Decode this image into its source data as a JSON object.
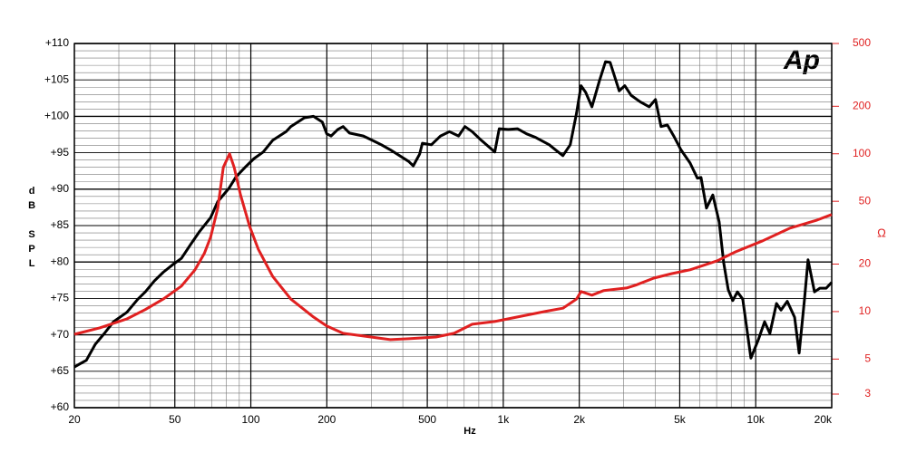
{
  "chart_data": {
    "type": "line",
    "y_label": "dB SPL",
    "x_label": "Hz",
    "y2_label": "Ω",
    "logo": "Ap",
    "x_log": true,
    "y2_log": true,
    "grid": true,
    "xlim": [
      20,
      20000
    ],
    "xticks": [
      20,
      50,
      100,
      200,
      500,
      {
        "value": 1000,
        "label": "1k"
      },
      {
        "value": 2000,
        "label": "2k"
      },
      {
        "value": 5000,
        "label": "5k"
      },
      {
        "value": 10000,
        "label": "10k"
      },
      {
        "value": 20000,
        "label": "20k"
      }
    ],
    "x_minor_ticks": [
      30,
      40,
      60,
      70,
      80,
      90,
      300,
      400,
      600,
      700,
      800,
      900,
      3000,
      4000,
      6000,
      7000,
      8000,
      9000
    ],
    "ylim": [
      60,
      110
    ],
    "yticks": [
      {
        "value": 60,
        "label": "+60"
      },
      {
        "value": 65,
        "label": "+65"
      },
      {
        "value": 70,
        "label": "+70"
      },
      {
        "value": 75,
        "label": "+75"
      },
      {
        "value": 80,
        "label": "+80"
      },
      {
        "value": 85,
        "label": "+85"
      },
      {
        "value": 90,
        "label": "+90"
      },
      {
        "value": 95,
        "label": "+95"
      },
      {
        "value": 100,
        "label": "+100"
      },
      {
        "value": 105,
        "label": "+105"
      },
      {
        "value": 110,
        "label": "+110"
      }
    ],
    "y_minor_ticks": [
      61,
      62,
      63,
      64,
      66,
      67,
      68,
      69,
      71,
      72,
      73,
      74,
      76,
      77,
      78,
      79,
      81,
      82,
      83,
      84,
      86,
      87,
      88,
      89,
      91,
      92,
      93,
      94,
      96,
      97,
      98,
      99,
      101,
      102,
      103,
      104,
      106,
      107,
      108,
      109
    ],
    "y2lim": [
      2.46,
      500
    ],
    "y2ticks": [
      3,
      5,
      10,
      20,
      50,
      100,
      200,
      500
    ],
    "y2_color": "#e02020",
    "series": [
      {
        "color": "#000000",
        "x": [
          20,
          22.3,
          24.2,
          26.3,
          28.6,
          32.3,
          35.7,
          38.2,
          41.5,
          45.0,
          48.9,
          53.1,
          57.7,
          62.7,
          69.3,
          74.0,
          81.8,
          87.4,
          94.9,
          103,
          112,
          122,
          138,
          144,
          163,
          177,
          192,
          200,
          208,
          221,
          232,
          246,
          279,
          303,
          329,
          357,
          422,
          440,
          466,
          478,
          519,
          564,
          612,
          665,
          705,
          753,
          819,
          925,
          964,
          1047,
          1138,
          1236,
          1343,
          1521,
          1611,
          1722,
          1841,
          1950,
          2033,
          2119,
          2245,
          2400,
          2541,
          2650,
          2878,
          3027,
          3206,
          3483,
          3785,
          4008,
          4216,
          4468,
          4732,
          5059,
          5495,
          5875,
          6070,
          6382,
          6761,
          7163,
          7466,
          7783,
          8113,
          8457,
          8882,
          9571,
          10230,
          10840,
          11380,
          12080,
          12590,
          13340,
          14260,
          14860,
          15600,
          16110,
          17090,
          17950,
          19010,
          20000
        ],
        "values": [
          65.6,
          66.5,
          68.7,
          70.2,
          71.8,
          73.1,
          74.9,
          75.9,
          77.4,
          78.6,
          79.6,
          80.5,
          82.4,
          84.2,
          86.1,
          88.3,
          90.1,
          91.7,
          93.0,
          94.2,
          95.1,
          96.7,
          97.9,
          98.6,
          99.8,
          100.0,
          99.2,
          97.6,
          97.3,
          98.2,
          98.6,
          97.7,
          97.3,
          96.7,
          96.1,
          95.4,
          93.8,
          93.2,
          94.8,
          96.3,
          96.1,
          97.3,
          97.9,
          97.3,
          98.6,
          97.9,
          96.7,
          95.1,
          98.3,
          98.2,
          98.3,
          97.6,
          97.1,
          96.1,
          95.4,
          94.6,
          96.1,
          100.4,
          104.2,
          103.3,
          101.3,
          104.8,
          107.5,
          107.4,
          103.5,
          104.2,
          102.9,
          102.0,
          101.3,
          102.3,
          98.6,
          98.8,
          97.3,
          95.4,
          93.6,
          91.5,
          91.6,
          87.4,
          89.2,
          85.5,
          79.9,
          76.2,
          74.7,
          75.9,
          74.9,
          66.8,
          69.3,
          71.8,
          70.2,
          74.3,
          73.4,
          74.6,
          72.4,
          67.5,
          74.9,
          80.3,
          75.9,
          76.4,
          76.4,
          77.2
        ]
      },
      {
        "color": "#e02020",
        "axis": "y2",
        "x": [
          20,
          25.2,
          32.3,
          38.2,
          45.0,
          53.1,
          60.1,
          65.4,
          69.3,
          74.0,
          77.8,
          82.4,
          85.9,
          91.0,
          98.9,
          107,
          122,
          144,
          177,
          200,
          232,
          279,
          357,
          422,
          541,
          638,
          753,
          925,
          1138,
          1459,
          1722,
          1950,
          2033,
          2245,
          2502,
          3076,
          3342,
          3945,
          4656,
          5495,
          7045,
          8314,
          10660,
          13670,
          17510,
          20000
        ],
        "values": [
          7.18,
          7.88,
          8.99,
          10.3,
          12.0,
          14.5,
          18.4,
          23.3,
          29.6,
          45.2,
          82.0,
          100,
          82.0,
          55.1,
          34.7,
          24.9,
          16.7,
          12.0,
          9.24,
          8.09,
          7.28,
          7.0,
          6.64,
          6.73,
          6.9,
          7.28,
          8.31,
          8.65,
          9.24,
          10.0,
          10.5,
          12.0,
          13.4,
          12.7,
          13.6,
          14.1,
          14.7,
          16.3,
          17.4,
          18.4,
          21.0,
          23.9,
          28.1,
          33.8,
          38.0,
          41.2
        ]
      }
    ]
  }
}
